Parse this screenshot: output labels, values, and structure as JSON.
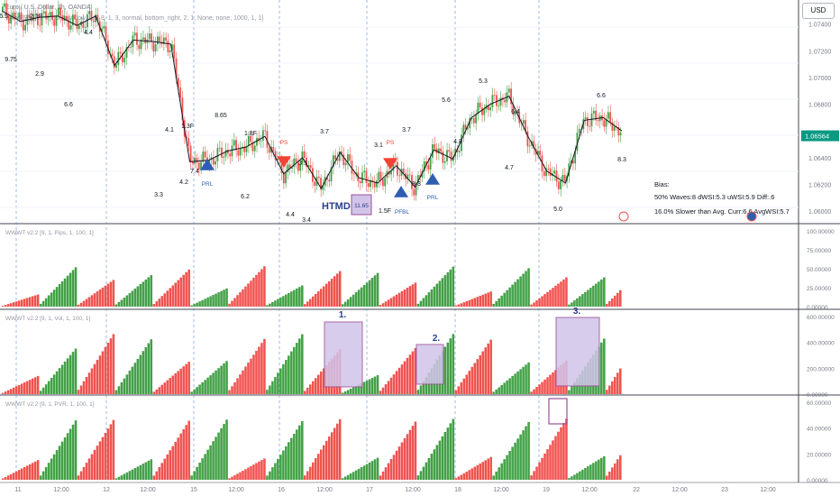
{
  "header": {
    "symbol_line": "Euro / U.S. Dollar, 1h, OANDA",
    "indicator_line": "WAVES [9, 1, 2, St+Fanalow, 0.5, 8, 1, 3, normal, bottom_right, 2, 1, None, none, 1000, 1, 1]",
    "currency_button": "USD"
  },
  "price_axis": {
    "ticks": [
      "1.07400",
      "1.07200",
      "1.07000",
      "1.06800",
      "1.06400",
      "1.06200",
      "1.06000"
    ],
    "current_price": "1.06564",
    "current_price_color": "#089981"
  },
  "time_axis": {
    "labels": [
      "11",
      "12:00",
      "12",
      "12:00",
      "15",
      "12:00",
      "16",
      "12:00",
      "17",
      "12:00",
      "18",
      "12:00",
      "19",
      "12:00",
      "22",
      "12:00",
      "23",
      "12:00"
    ]
  },
  "wave_labels": [
    "6.5",
    "2.1F",
    "4.4",
    "9.75",
    "2.9",
    "6.6",
    "4.1",
    "1.3F",
    "8.65",
    "1.8F",
    "3.3",
    "4.2",
    "7.4",
    "6.2",
    "3.7",
    "3.5",
    "4.4",
    "3.4",
    "3.1",
    "3.7",
    "1.5F",
    "5.6",
    "4.8",
    "8.3",
    "5.3",
    "6.4",
    "4.7",
    "5.0",
    "6.6",
    "8.3"
  ],
  "markers": {
    "prl": "PRL",
    "ps": "PS",
    "pfbl": "PFBL",
    "htmd": "HTMD",
    "htmd_value": "11.65"
  },
  "bias_box": {
    "title": "Bias:",
    "line1": "50% Waves:8 dWSI:5.3 uWSI:5.9 Diff:.6",
    "line2": "16.0% Slower than Avg. Curr:6.6 AvgWSI:5.7"
  },
  "panes": [
    {
      "title": "WWWT v2.2 [9, 1, Pips, 1, 100, 1]",
      "axis": [
        "100.00000",
        "75.00000",
        "50.00000",
        "25.00000",
        "0.00000"
      ]
    },
    {
      "title": "WWWT v2.2 [9, 1, Vol, 1, 100, 1]",
      "axis": [
        "600.00000",
        "400.00000",
        "200.00000",
        "0.00000"
      ],
      "annotations": [
        "1.",
        "2.",
        "3."
      ]
    },
    {
      "title": "WWWT v2.2 [9, 1, PVR, 1, 100, 1]",
      "axis": [
        "60.00000",
        "40.00000",
        "20.00000",
        "0.00000"
      ]
    }
  ],
  "colors": {
    "up": "#43a047",
    "down": "#ef5350",
    "wave_line": "#131722",
    "marker_blue": "#2e5eb0",
    "marker_red": "#f44336",
    "highlight": "#9c4f96"
  },
  "chart_data": {
    "type": "candlestick",
    "price_range": [
      1.0592,
      1.0758
    ],
    "wave_points": [
      [
        1.075,
        1
      ],
      [
        1.0742,
        1
      ],
      [
        1.0745,
        1
      ],
      [
        1.0746,
        1
      ],
      [
        1.0739,
        1
      ],
      [
        1.0746,
        1
      ],
      [
        1.0709,
        1
      ],
      [
        1.0728,
        1
      ],
      [
        1.0727,
        1
      ],
      [
        1.0725,
        1
      ],
      [
        1.0637,
        1
      ],
      [
        1.0638,
        1
      ],
      [
        1.0645,
        1
      ],
      [
        1.0648,
        1
      ],
      [
        1.0656,
        1
      ],
      [
        1.0628,
        1
      ],
      [
        1.064,
        1
      ],
      [
        1.0617,
        1
      ],
      [
        1.0644,
        1
      ],
      [
        1.0625,
        1
      ],
      [
        1.0621,
        1
      ],
      [
        1.0634,
        1
      ],
      [
        1.0618,
        1
      ],
      [
        1.0646,
        1
      ],
      [
        1.0639,
        1
      ],
      [
        1.067,
        1
      ],
      [
        1.068,
        1
      ],
      [
        1.0686,
        1
      ],
      [
        1.0656,
        1
      ],
      [
        1.063,
        1
      ],
      [
        1.0621,
        1
      ],
      [
        1.0668,
        1
      ],
      [
        1.067,
        1
      ],
      [
        1.066,
        1
      ]
    ]
  }
}
